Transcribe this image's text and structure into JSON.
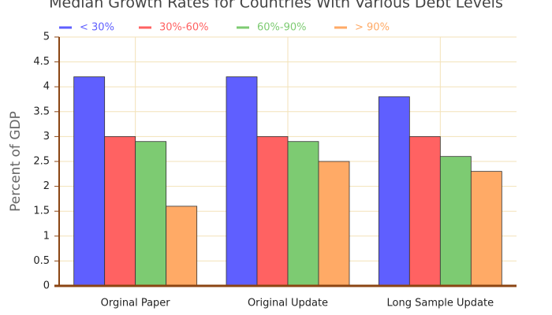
{
  "chart_data": {
    "type": "bar",
    "title": "Median Growth Rates for Countries With Various Debt Levels",
    "y_label": "Percent of GDP",
    "categories": [
      "Orginal Paper",
      "Original Update",
      "Long Sample Update"
    ],
    "series": [
      {
        "name": "< 30%",
        "color": "#5f5fff",
        "values": [
          4.2,
          4.2,
          3.8
        ]
      },
      {
        "name": "30%-60%",
        "color": "#ff6262",
        "values": [
          3.0,
          3.0,
          3.0
        ]
      },
      {
        "name": "60%-90%",
        "color": "#7dcb72",
        "values": [
          2.9,
          2.9,
          2.6
        ]
      },
      {
        "name": "> 90%",
        "color": "#ffaa66",
        "values": [
          1.6,
          2.5,
          2.3
        ]
      }
    ],
    "ylim": [
      0,
      5
    ],
    "yticks": [
      0,
      0.5,
      1,
      1.5,
      2,
      2.5,
      3,
      3.5,
      4,
      4.5,
      5
    ],
    "grid": true,
    "legend": "top-left"
  }
}
